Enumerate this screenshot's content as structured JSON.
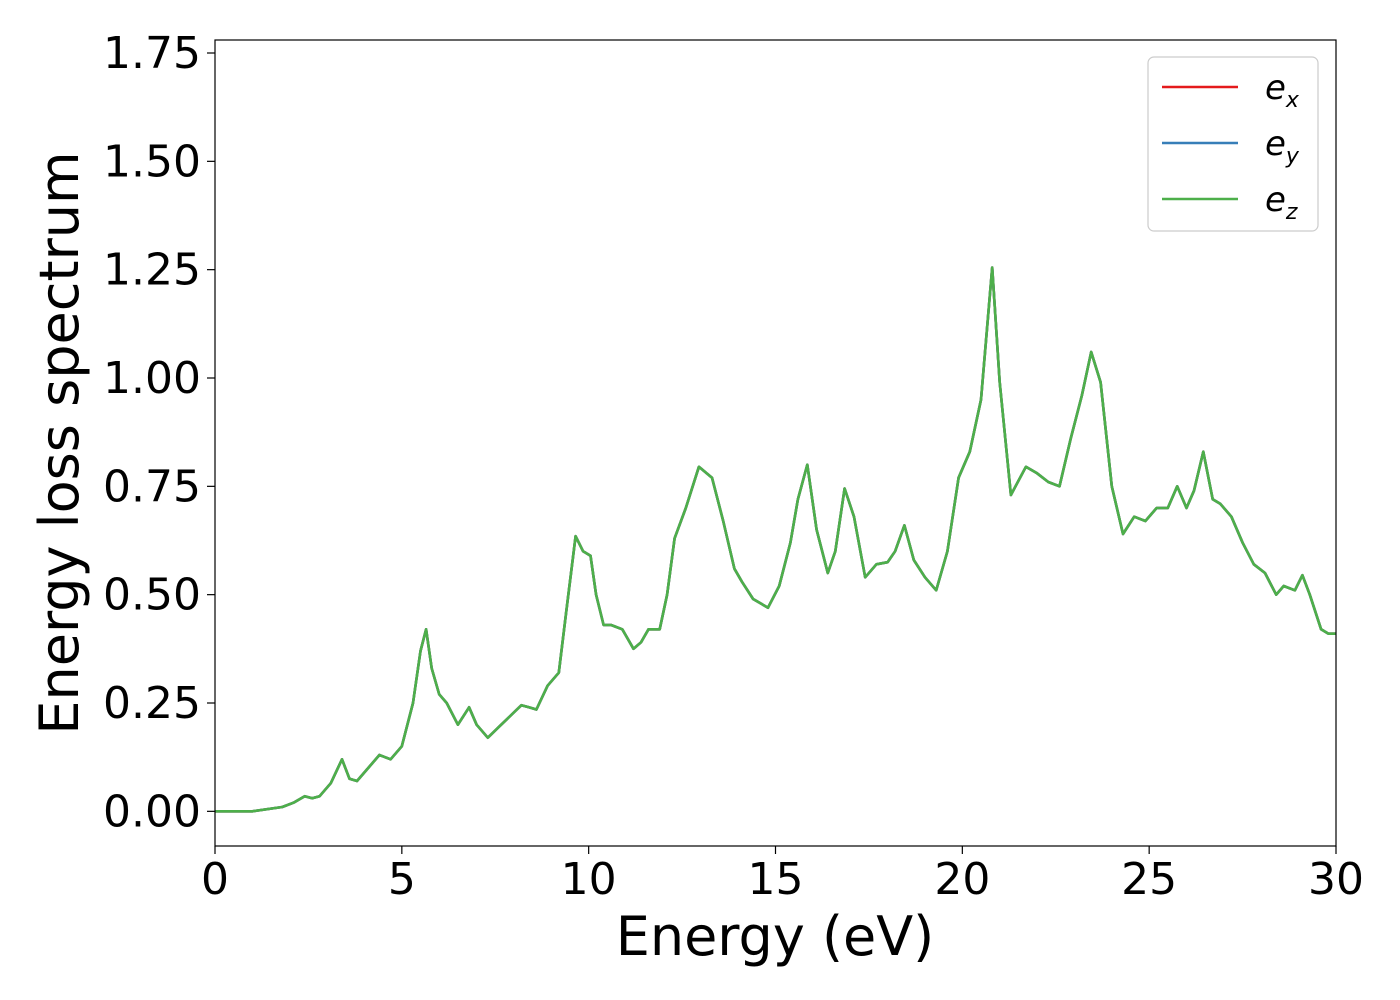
{
  "chart_data": {
    "type": "line",
    "xlabel": "Energy (eV)",
    "ylabel": "Energy loss spectrum",
    "xlim": [
      0,
      30
    ],
    "ylim": [
      -0.08,
      1.78
    ],
    "xticks": [
      "0",
      "5",
      "10",
      "15",
      "20",
      "25",
      "30"
    ],
    "yticks": [
      "0.00",
      "0.25",
      "0.50",
      "0.75",
      "1.00",
      "1.25",
      "1.50",
      "1.75"
    ],
    "grid": false,
    "legend_position": "top-right",
    "series": [
      {
        "name": "e",
        "subscript": "x",
        "color": "#e41a1c"
      },
      {
        "name": "e",
        "subscript": "y",
        "color": "#377eb8"
      },
      {
        "name": "e",
        "subscript": "z",
        "color": "#4daf4a"
      }
    ],
    "x": [
      0,
      1,
      1.8,
      2.1,
      2.4,
      2.6,
      2.8,
      3.1,
      3.4,
      3.6,
      3.8,
      4.1,
      4.4,
      4.7,
      5.0,
      5.3,
      5.5,
      5.65,
      5.8,
      6.0,
      6.2,
      6.5,
      6.8,
      7.0,
      7.3,
      7.6,
      7.9,
      8.2,
      8.4,
      8.6,
      8.9,
      9.2,
      9.4,
      9.65,
      9.85,
      10.05,
      10.2,
      10.4,
      10.6,
      10.9,
      11.2,
      11.4,
      11.6,
      11.9,
      12.1,
      12.3,
      12.6,
      12.95,
      13.3,
      13.6,
      13.9,
      14.1,
      14.4,
      14.8,
      15.1,
      15.4,
      15.6,
      15.85,
      16.1,
      16.4,
      16.6,
      16.85,
      17.1,
      17.4,
      17.7,
      18.0,
      18.2,
      18.45,
      18.7,
      19.0,
      19.3,
      19.6,
      19.9,
      20.2,
      20.5,
      20.8,
      21.0,
      21.3,
      21.7,
      22.0,
      22.3,
      22.6,
      22.9,
      23.2,
      23.45,
      23.7,
      24.0,
      24.3,
      24.6,
      24.9,
      25.2,
      25.5,
      25.75,
      26.0,
      26.2,
      26.45,
      26.7,
      26.9,
      27.2,
      27.5,
      27.8,
      28.1,
      28.4,
      28.6,
      28.9,
      29.1,
      29.3,
      29.6,
      29.8,
      30.0
    ],
    "y": [
      0.0,
      0.0,
      0.01,
      0.02,
      0.035,
      0.03,
      0.035,
      0.065,
      0.12,
      0.075,
      0.07,
      0.1,
      0.13,
      0.12,
      0.15,
      0.25,
      0.37,
      0.42,
      0.33,
      0.27,
      0.25,
      0.2,
      0.24,
      0.2,
      0.17,
      0.195,
      0.22,
      0.245,
      0.24,
      0.235,
      0.29,
      0.32,
      0.46,
      0.635,
      0.6,
      0.59,
      0.5,
      0.43,
      0.43,
      0.42,
      0.375,
      0.39,
      0.42,
      0.42,
      0.5,
      0.63,
      0.7,
      0.795,
      0.77,
      0.67,
      0.56,
      0.53,
      0.49,
      0.47,
      0.52,
      0.62,
      0.72,
      0.8,
      0.65,
      0.55,
      0.6,
      0.745,
      0.68,
      0.54,
      0.57,
      0.575,
      0.6,
      0.66,
      0.58,
      0.54,
      0.51,
      0.6,
      0.77,
      0.83,
      0.95,
      1.255,
      0.99,
      0.73,
      0.795,
      0.78,
      0.76,
      0.75,
      0.86,
      0.96,
      1.06,
      0.99,
      0.75,
      0.64,
      0.68,
      0.67,
      0.7,
      0.7,
      0.75,
      0.7,
      0.74,
      0.83,
      0.72,
      0.71,
      0.68,
      0.62,
      0.57,
      0.55,
      0.5,
      0.52,
      0.51,
      0.545,
      0.5,
      0.42,
      0.41,
      0.41
    ]
  }
}
